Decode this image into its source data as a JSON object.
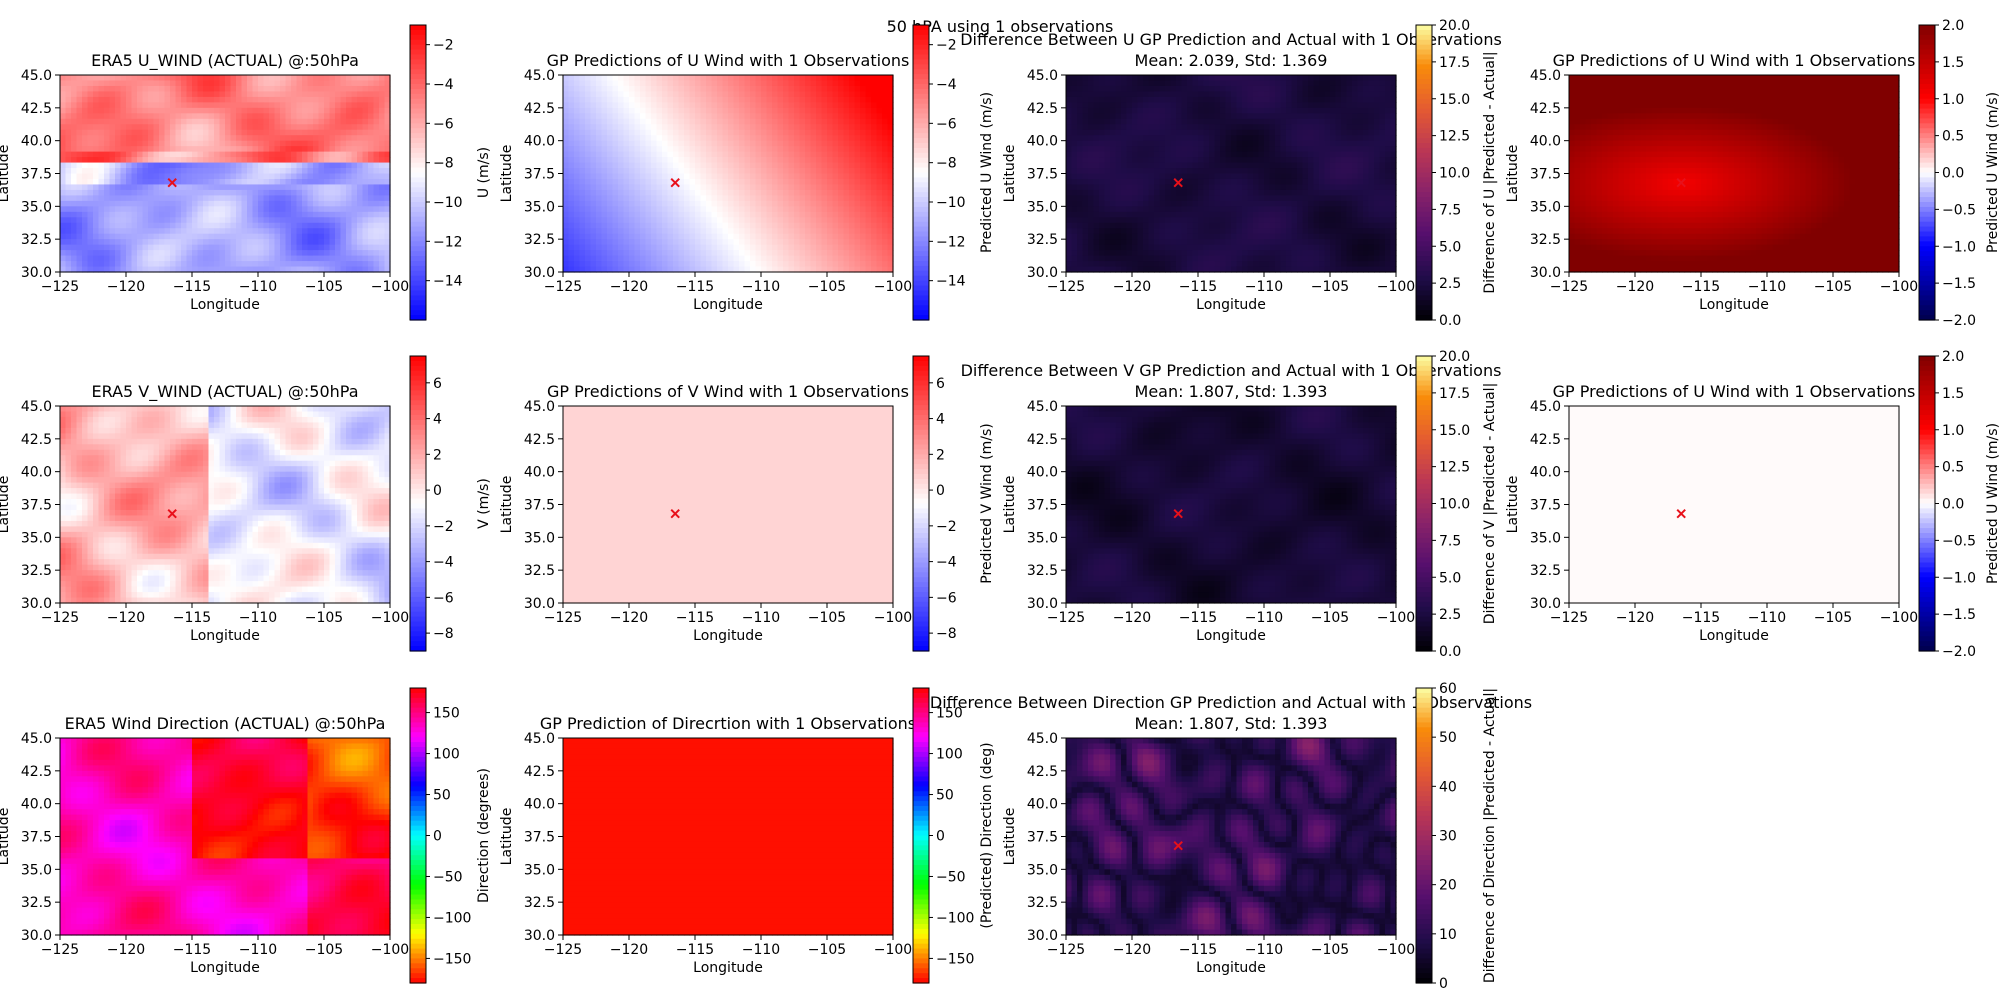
{
  "figure": {
    "suptitle": "50 hPA using 1 observations"
  },
  "colors": {
    "marker": "#e8101a"
  },
  "chart_data": [
    {
      "type": "heatmap",
      "panel": "r0c0",
      "title": "ERA5 U_WIND (ACTUAL) @:50hPa",
      "xlabel": "Longitude",
      "ylabel": "Latitude",
      "xlim": [
        -125,
        -100
      ],
      "ylim": [
        30,
        45
      ],
      "x_ticks": [
        "−125",
        "−120",
        "−115",
        "−110",
        "−105",
        "−100"
      ],
      "y_ticks": [
        "30.0",
        "32.5",
        "35.0",
        "37.5",
        "40.0",
        "42.5",
        "45.0"
      ],
      "colormap": "bwr",
      "field": "u_actual",
      "colorbar": {
        "label": "U (m/s)",
        "range": [
          -16,
          -1
        ],
        "ticks": [
          "−14",
          "−12",
          "−10",
          "−8",
          "−6",
          "−4",
          "−2"
        ]
      },
      "observation": {
        "lon": -116.5,
        "lat": 36.8
      }
    },
    {
      "type": "heatmap",
      "panel": "r0c1",
      "title": "GP Predictions of U Wind with 1 Observations",
      "xlabel": "Longitude",
      "ylabel": "Latitude",
      "xlim": [
        -125,
        -100
      ],
      "ylim": [
        30,
        45
      ],
      "x_ticks": [
        "−125",
        "−120",
        "−115",
        "−110",
        "−105",
        "−100"
      ],
      "y_ticks": [
        "30.0",
        "32.5",
        "35.0",
        "37.5",
        "40.0",
        "42.5",
        "45.0"
      ],
      "colormap": "bwr",
      "field": "u_gradient",
      "colorbar": {
        "label": "Predicted U Wind (m/s)",
        "range": [
          -16,
          -1
        ],
        "ticks": [
          "−14",
          "−12",
          "−10",
          "−8",
          "−6",
          "−4",
          "−2"
        ]
      },
      "observation": {
        "lon": -116.5,
        "lat": 36.8
      }
    },
    {
      "type": "heatmap",
      "panel": "r0c2",
      "title": "Difference Between U GP Prediction and Actual with 1 Observations",
      "subtitle": "Mean: 2.039, Std: 1.369",
      "xlabel": "Longitude",
      "ylabel": "Latitude",
      "xlim": [
        -125,
        -100
      ],
      "ylim": [
        30,
        45
      ],
      "x_ticks": [
        "−125",
        "−120",
        "−115",
        "−110",
        "−105",
        "−100"
      ],
      "y_ticks": [
        "30.0",
        "32.5",
        "35.0",
        "37.5",
        "40.0",
        "42.5",
        "45.0"
      ],
      "colormap": "inferno",
      "field": "diff_low",
      "colorbar": {
        "label": "Difference of U |Predicted - Actual|",
        "range": [
          0,
          20
        ],
        "ticks": [
          "0.0",
          "2.5",
          "5.0",
          "7.5",
          "10.0",
          "12.5",
          "15.0",
          "17.5",
          "20.0"
        ]
      },
      "observation": {
        "lon": -116.5,
        "lat": 36.8
      }
    },
    {
      "type": "heatmap",
      "panel": "r0c3",
      "title": "GP Predictions of U Wind with 1 Observations",
      "xlabel": "Longitude",
      "ylabel": "Latitude",
      "xlim": [
        -125,
        -100
      ],
      "ylim": [
        30,
        45
      ],
      "x_ticks": [
        "−125",
        "−120",
        "−115",
        "−110",
        "−105",
        "−100"
      ],
      "y_ticks": [
        "30.0",
        "32.5",
        "35.0",
        "37.5",
        "40.0",
        "42.5",
        "45.0"
      ],
      "colormap": "seismic",
      "field": "red_radial",
      "colorbar": {
        "label": "Predicted U Wind (m/s)",
        "range": [
          -2,
          2
        ],
        "ticks": [
          "−2.0",
          "−1.5",
          "−1.0",
          "−0.5",
          "0.0",
          "0.5",
          "1.0",
          "1.5",
          "2.0"
        ]
      },
      "observation": {
        "lon": -116.5,
        "lat": 36.8
      }
    },
    {
      "type": "heatmap",
      "panel": "r1c0",
      "title": "ERA5 V_WIND (ACTUAL) @:50hPa",
      "xlabel": "Longitude",
      "ylabel": "Latitude",
      "xlim": [
        -125,
        -100
      ],
      "ylim": [
        30,
        45
      ],
      "x_ticks": [
        "−125",
        "−120",
        "−115",
        "−110",
        "−105",
        "−100"
      ],
      "y_ticks": [
        "30.0",
        "32.5",
        "35.0",
        "37.5",
        "40.0",
        "42.5",
        "45.0"
      ],
      "colormap": "bwr",
      "field": "v_actual",
      "colorbar": {
        "label": "V (m/s)",
        "range": [
          -9,
          7.5
        ],
        "ticks": [
          "−8",
          "−6",
          "−4",
          "−2",
          "0",
          "2",
          "4",
          "6"
        ]
      },
      "observation": {
        "lon": -116.5,
        "lat": 36.8
      }
    },
    {
      "type": "heatmap",
      "panel": "r1c1",
      "title": "GP Predictions of V Wind with 1 Observations",
      "xlabel": "Longitude",
      "ylabel": "Latitude",
      "xlim": [
        -125,
        -100
      ],
      "ylim": [
        30,
        45
      ],
      "x_ticks": [
        "−125",
        "−120",
        "−115",
        "−110",
        "−105",
        "−100"
      ],
      "y_ticks": [
        "30.0",
        "32.5",
        "35.0",
        "37.5",
        "40.0",
        "42.5",
        "45.0"
      ],
      "colormap": "bwr",
      "field": "uniform_pink",
      "colorbar": {
        "label": "Predicted V Wind (m/s)",
        "range": [
          -9,
          7.5
        ],
        "ticks": [
          "−8",
          "−6",
          "−4",
          "−2",
          "0",
          "2",
          "4",
          "6"
        ]
      },
      "observation": {
        "lon": -116.5,
        "lat": 36.8
      }
    },
    {
      "type": "heatmap",
      "panel": "r1c2",
      "title": "Difference Between V GP Prediction and Actual with 1 Observations",
      "subtitle": "Mean: 1.807, Std: 1.393",
      "xlabel": "Longitude",
      "ylabel": "Latitude",
      "xlim": [
        -125,
        -100
      ],
      "ylim": [
        30,
        45
      ],
      "x_ticks": [
        "−125",
        "−120",
        "−115",
        "−110",
        "−105",
        "−100"
      ],
      "y_ticks": [
        "30.0",
        "32.5",
        "35.0",
        "37.5",
        "40.0",
        "42.5",
        "45.0"
      ],
      "colormap": "inferno",
      "field": "diff_low2",
      "colorbar": {
        "label": "Difference of V |Predicted - Actual|",
        "range": [
          0,
          20
        ],
        "ticks": [
          "0.0",
          "2.5",
          "5.0",
          "7.5",
          "10.0",
          "12.5",
          "15.0",
          "17.5",
          "20.0"
        ]
      },
      "observation": {
        "lon": -116.5,
        "lat": 36.8
      }
    },
    {
      "type": "heatmap",
      "panel": "r1c3",
      "title": "GP Predictions of U Wind with 1 Observations",
      "xlabel": "Longitude",
      "ylabel": "Latitude",
      "xlim": [
        -125,
        -100
      ],
      "ylim": [
        30,
        45
      ],
      "x_ticks": [
        "−125",
        "−120",
        "−115",
        "−110",
        "−105",
        "−100"
      ],
      "y_ticks": [
        "30.0",
        "32.5",
        "35.0",
        "37.5",
        "40.0",
        "42.5",
        "45.0"
      ],
      "colormap": "seismic",
      "field": "uniform_white",
      "colorbar": {
        "label": "Predicted U Wind (m/s)",
        "range": [
          -2,
          2
        ],
        "ticks": [
          "−2.0",
          "−1.5",
          "−1.0",
          "−0.5",
          "0.0",
          "0.5",
          "1.0",
          "1.5",
          "2.0"
        ]
      },
      "observation": {
        "lon": -116.5,
        "lat": 36.8
      }
    },
    {
      "type": "heatmap",
      "panel": "r2c0",
      "title": "ERA5 Wind Direction (ACTUAL) @:50hPa",
      "xlabel": "Longitude",
      "ylabel": "Latitude",
      "xlim": [
        -125,
        -100
      ],
      "ylim": [
        30,
        45
      ],
      "x_ticks": [
        "−125",
        "−120",
        "−115",
        "−110",
        "−105",
        "−100"
      ],
      "y_ticks": [
        "30.0",
        "32.5",
        "35.0",
        "37.5",
        "40.0",
        "42.5",
        "45.0"
      ],
      "colormap": "hsv",
      "field": "dir_actual",
      "colorbar": {
        "label": "Direction (degrees)",
        "range": [
          -180,
          180
        ],
        "ticks": [
          "−150",
          "−100",
          "−50",
          "0",
          "50",
          "100",
          "150"
        ]
      }
    },
    {
      "type": "heatmap",
      "panel": "r2c1",
      "title": "GP Prediction of Direcrtion with 1 Observations",
      "xlabel": "Longitude",
      "ylabel": "Latitude",
      "xlim": [
        -125,
        -100
      ],
      "ylim": [
        30,
        45
      ],
      "x_ticks": [
        "−125",
        "−120",
        "−115",
        "−110",
        "−105",
        "−100"
      ],
      "y_ticks": [
        "30.0",
        "32.5",
        "35.0",
        "37.5",
        "40.0",
        "42.5",
        "45.0"
      ],
      "colormap": "hsv",
      "field": "uniform_red",
      "colorbar": {
        "label": "(Predicted) Direction (deg)",
        "range": [
          -180,
          180
        ],
        "ticks": [
          "−150",
          "−100",
          "−50",
          "0",
          "50",
          "100",
          "150"
        ]
      }
    },
    {
      "type": "heatmap",
      "panel": "r2c2",
      "title": "Difference Between Direction GP Prediction and Actual with 1 Observations",
      "subtitle": "Mean: 1.807, Std: 1.393",
      "xlabel": "Longitude",
      "ylabel": "Latitude",
      "xlim": [
        -125,
        -100
      ],
      "ylim": [
        30,
        45
      ],
      "x_ticks": [
        "−125",
        "−120",
        "−115",
        "−110",
        "−105",
        "−100"
      ],
      "y_ticks": [
        "30.0",
        "32.5",
        "35.0",
        "37.5",
        "40.0",
        "42.5",
        "45.0"
      ],
      "colormap": "inferno",
      "field": "diff_dir",
      "colorbar": {
        "label": "Difference of Direction |Predicted - Actual|",
        "range": [
          0,
          60
        ],
        "ticks": [
          "0",
          "10",
          "20",
          "30",
          "40",
          "50",
          "60"
        ]
      },
      "observation": {
        "lon": -116.5,
        "lat": 36.8
      }
    }
  ]
}
